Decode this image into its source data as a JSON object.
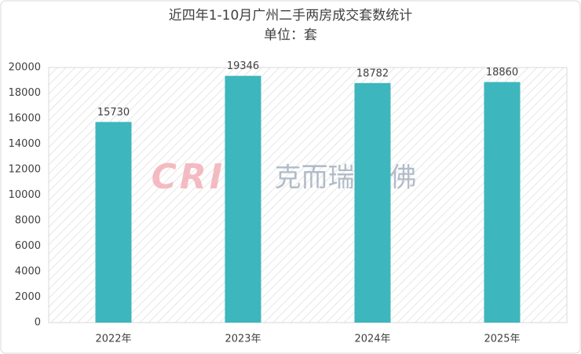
{
  "chart_data": {
    "type": "bar",
    "title": "近四年1-10月广州二手两房成交套数统计",
    "subtitle": "单位：套",
    "categories": [
      "2022年",
      "2023年",
      "2024年",
      "2025年"
    ],
    "values": [
      15730,
      19346,
      18782,
      18860
    ],
    "color": "#3db6bd",
    "ylim": [
      0,
      20000
    ],
    "yticks": [
      0,
      2000,
      4000,
      6000,
      8000,
      10000,
      12000,
      14000,
      16000,
      18000,
      20000
    ],
    "grid": false,
    "data_labels": true,
    "watermark": {
      "logo": "CRIC",
      "text": "克而瑞·广佛"
    }
  }
}
